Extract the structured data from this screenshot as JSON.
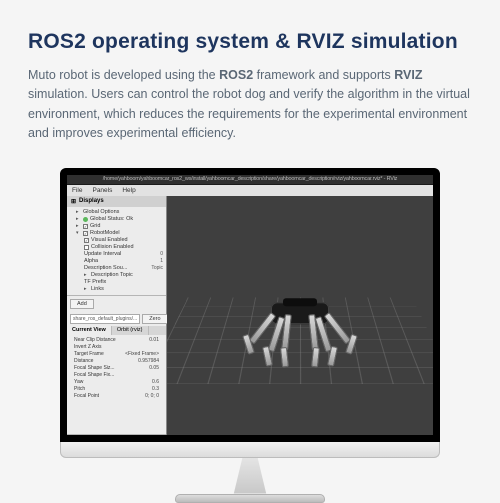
{
  "heading": "ROS2 operating system & RVIZ simulation",
  "desc_parts": {
    "p1": "Muto robot is developed using the ",
    "b1": "ROS2",
    "p2": " framework and supports ",
    "b2": "RVIZ",
    "p3": " simulation. Users can control the robot dog and verify the algorithm in the virtual environment, which reduces the requirements for the experimental environment and improves experimental efficiency."
  },
  "window": {
    "title": "/home/yahboom/yahboomcar_ros2_ws/install/yahboomcar_description/share/yahboomcar_description/rviz/yahboomcar.rviz* - RViz",
    "menu": [
      "File",
      "Panels",
      "Help"
    ]
  },
  "displays": {
    "panel_title": "Displays",
    "items": [
      {
        "label": "Global Options",
        "type": "group"
      },
      {
        "label": "Global Status: Ok",
        "type": "status"
      },
      {
        "label": "Grid",
        "type": "check",
        "checked": true
      },
      {
        "label": "RobotModel",
        "type": "group_open"
      },
      {
        "label": "Visual Enabled",
        "checked": true,
        "indent": 1
      },
      {
        "label": "Collision Enabled",
        "checked": false,
        "indent": 1
      },
      {
        "label": "Update Interval",
        "value": "0",
        "indent": 1
      },
      {
        "label": "Alpha",
        "value": "1",
        "indent": 1
      },
      {
        "label": "Description Sou...",
        "value": "Topic",
        "indent": 1
      },
      {
        "label": "Description Topic",
        "indent": 1
      },
      {
        "label": "TF Prefix",
        "indent": 1
      },
      {
        "label": "Links",
        "indent": 1
      }
    ],
    "add_btn": "Add",
    "save_label": "Save",
    "save_path": "share_ros_default_plugins/..."
  },
  "views": {
    "tabs": [
      "Current View",
      "Orbit (rviz)"
    ],
    "props": [
      {
        "k": "Near Clip Distance",
        "v": "0.01"
      },
      {
        "k": "Invert Z Axis",
        "v": ""
      },
      {
        "k": "Target Frame",
        "v": "<Fixed Frame>"
      },
      {
        "k": "Distance",
        "v": "0.957984"
      },
      {
        "k": "Focal Shape Siz...",
        "v": "0.05"
      },
      {
        "k": "Focal Shape Fix...",
        "v": ""
      },
      {
        "k": "Yaw",
        "v": "0.6"
      },
      {
        "k": "Pitch",
        "v": "0.3"
      },
      {
        "k": "Focal Point",
        "v": "0; 0; 0"
      }
    ],
    "zero_btn": "Zero"
  },
  "colors": {
    "heading": "#1e355e",
    "body_text": "#5a6775",
    "page_bg": "#f5f5f5",
    "viewport_bg": "#3f3f3f",
    "panel_bg": "#ececec"
  }
}
